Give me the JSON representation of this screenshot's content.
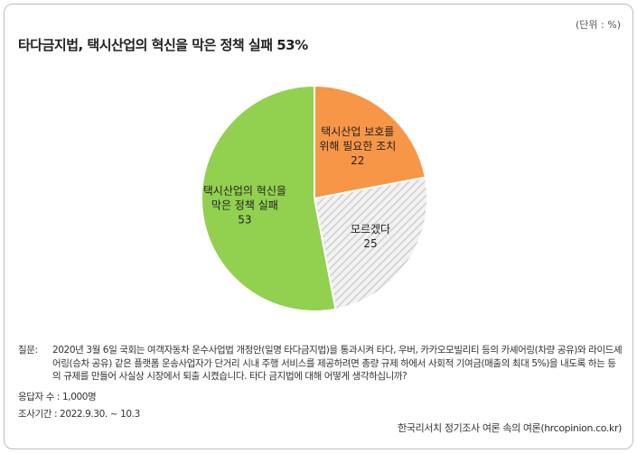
{
  "unit_label": "(단위 : %)",
  "chart_data": {
    "type": "pie",
    "title": "타다금지법, 택시산업의 혁신을 막은 정책 실패  53%",
    "slices": [
      {
        "label_lines": [
          "택시산업 보호를",
          "위해 필요한 조치"
        ],
        "value": 22,
        "color": "#f79646",
        "pattern": "none"
      },
      {
        "label_lines": [
          "모르겠다"
        ],
        "value": 25,
        "color": "#e6e6e6",
        "pattern": "hatch"
      },
      {
        "label_lines": [
          "택시산업의 혁신을",
          "막은 정책 실패"
        ],
        "value": 53,
        "color": "#92d050",
        "pattern": "none"
      }
    ]
  },
  "footer": {
    "question_label": "질문:",
    "question_text": "2020년 3월 6일 국회는 여객자동차 운수사업법 개정안(일명 타다금지법)을 통과시켜 타다, 우버, 카카오모빌리티 등의 카셰어링(차량 공유)와 라이드셰어링(승차 공유) 같은 플랫폼 운송사업자가 단거리 시내 주행 서비스를 제공하려면 총량 규제 하에서 사회적 기여금(매출의 최대 5%)을 내도록 하는 등의 규제를 만들어 사실상 시장에서 퇴출 시켰습니다. 타다 금지법에 대해 어떻게 생각하십니까?",
    "respondents": "응답자 수 : 1,000명",
    "survey_period": "조사기간 : 2022.9.30. ~ 10.3",
    "source": "한국리서치 정기조사 여론 속의 여론(hrcopinion.co.kr)"
  }
}
